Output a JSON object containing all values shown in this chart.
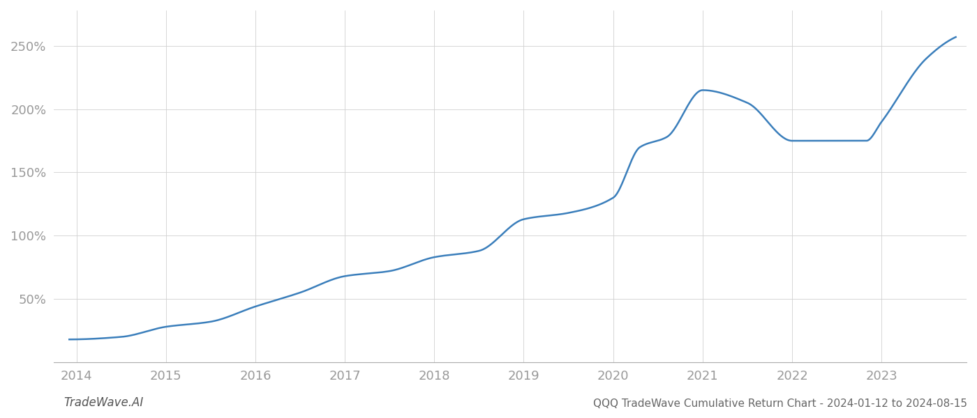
{
  "title": "QQQ TradeWave Cumulative Return Chart - 2024-01-12 to 2024-08-15",
  "watermark": "TradeWave.AI",
  "x_years": [
    2014,
    2015,
    2016,
    2017,
    2018,
    2019,
    2020,
    2021,
    2022,
    2023
  ],
  "key_points": [
    [
      2013.92,
      18
    ],
    [
      2014.5,
      20
    ],
    [
      2015.0,
      28
    ],
    [
      2015.5,
      32
    ],
    [
      2016.0,
      44
    ],
    [
      2016.5,
      55
    ],
    [
      2017.0,
      68
    ],
    [
      2017.5,
      72
    ],
    [
      2018.0,
      83
    ],
    [
      2018.5,
      88
    ],
    [
      2019.0,
      113
    ],
    [
      2019.5,
      118
    ],
    [
      2020.0,
      130
    ],
    [
      2020.3,
      170
    ],
    [
      2020.6,
      178
    ],
    [
      2021.0,
      215
    ],
    [
      2021.5,
      205
    ],
    [
      2022.0,
      175
    ],
    [
      2022.5,
      175
    ],
    [
      2022.83,
      175
    ],
    [
      2023.0,
      190
    ],
    [
      2023.5,
      240
    ],
    [
      2023.83,
      257
    ]
  ],
  "line_color": "#3a7ebb",
  "line_width": 1.8,
  "background_color": "#ffffff",
  "grid_color": "#d0d0d0",
  "ytick_labels": [
    "50%",
    "100%",
    "150%",
    "200%",
    "250%"
  ],
  "ytick_values": [
    50,
    100,
    150,
    200,
    250
  ],
  "ylim": [
    0,
    278
  ],
  "xlim": [
    2013.75,
    2023.95
  ],
  "title_fontsize": 11,
  "watermark_fontsize": 12,
  "tick_fontsize": 13,
  "tick_color": "#999999",
  "spine_color": "#aaaaaa"
}
